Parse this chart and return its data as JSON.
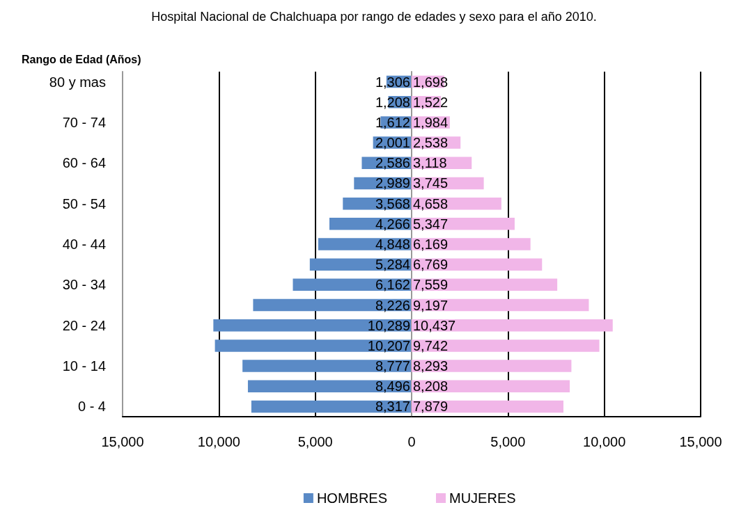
{
  "chart_data": [
    {
      "type": "bar",
      "orientation": "horizontal",
      "title": "Hospital Nacional de Chalchuapa por rango de edades y sexo para el año 2010.",
      "ylabel": "Rango de Edad (Años)",
      "categories": [
        "80 y mas",
        null,
        "70 - 74",
        null,
        "60 - 64",
        null,
        "50 - 54",
        null,
        "40 - 44",
        null,
        "30 - 34",
        null,
        "20 - 24",
        null,
        "10 - 14",
        null,
        "0 - 4"
      ],
      "series": [
        {
          "name": "HOMBRES",
          "color": "#5a8ac6",
          "values": [
            1306,
            1208,
            1612,
            2001,
            2586,
            2989,
            3568,
            4266,
            4848,
            5284,
            6162,
            8226,
            10289,
            10207,
            8777,
            8496,
            8317
          ],
          "value_labels": [
            "1,306",
            "1,208",
            "1,612",
            "2,001",
            "2,586",
            "2,989",
            "3,568",
            "4,266",
            "4,848",
            "5,284",
            "6,162",
            "8,226",
            "10,289",
            "10,207",
            "8,777",
            "8,496",
            "8,317"
          ]
        }
      ],
      "xlim": [
        15000,
        0
      ],
      "xticks": [
        {
          "value": 15000,
          "label": "15,000"
        },
        {
          "value": 10000,
          "label": "10,000"
        },
        {
          "value": 5000,
          "label": "5,000"
        }
      ],
      "grid": "x",
      "legend": "bottom right"
    },
    {
      "type": "bar",
      "orientation": "horizontal",
      "categories": [
        null,
        null,
        null,
        null,
        null,
        null,
        null,
        null,
        null,
        null,
        null,
        null,
        null,
        null,
        null,
        null,
        null
      ],
      "series": [
        {
          "name": "MUJERES",
          "color": "#f1b6e8",
          "values": [
            1698,
            1522,
            1984,
            2538,
            3118,
            3745,
            4658,
            5347,
            6169,
            6769,
            7559,
            9197,
            10437,
            9742,
            8293,
            8208,
            7879
          ],
          "value_labels": [
            "1,698",
            "1,522",
            "1,984",
            "2,538",
            "3,118",
            "3,745",
            "4,658",
            "5,347",
            "6,169",
            "6,769",
            "7,559",
            "9,197",
            "10,437",
            "9,742",
            "8,293",
            "8,208",
            "7,879"
          ]
        }
      ],
      "xlim": [
        0,
        15000
      ],
      "xticks": [
        0,
        {
          "value": 5000,
          "label": "5,000"
        },
        {
          "value": 10000,
          "label": "10,000"
        },
        {
          "value": 15000,
          "label": "15,000"
        }
      ],
      "grid": "x",
      "legend": "bottom left",
      "tick_labels": "x"
    }
  ]
}
